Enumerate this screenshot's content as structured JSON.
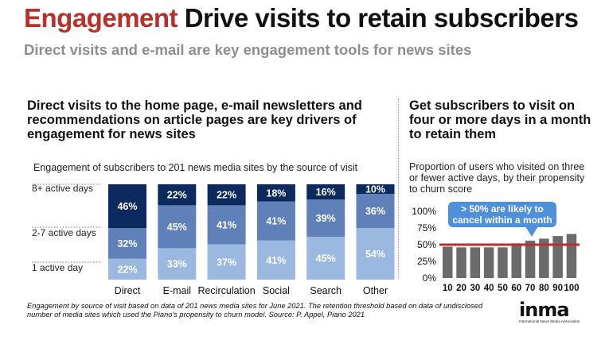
{
  "title": {
    "accent": "Engagement",
    "rest": " Drive visits to retain subscribers"
  },
  "subtitle": "Direct visits and e-mail are key engagement tools for news sites",
  "left_heading": "Direct visits to the home page, e-mail newsletters and recommendations on article pages are key drivers of engagement for news sites",
  "left_caption": "Engagement of subscribers to 201 news media sites by the source of visit",
  "right_heading": "Get subscribers to visit on four or more days in a month to retain them",
  "right_caption": "Proportion of users who visited on three or fewer active days, by their propensity to churn score",
  "footnote": "Engagement by source of visit based on data of 201 news media sites for June 2021. The retention threshold based on data of undisclosed number of media sites which used the Piano's propensity to churn model. Source: P. Appel, Piano 2021",
  "logo": {
    "wordmark": "inma",
    "tagline": "International News Media Association"
  },
  "colors": {
    "title_accent": "#b8302a",
    "dark_navy": "#0d2a5e",
    "mid_blue": "#5f80b8",
    "light_blue": "#9ab8e0",
    "grey_bar": "#6b6b6b",
    "threshold_red": "#b8302a",
    "callout_blue": "#4f90dc"
  },
  "chart_data": [
    {
      "type": "bar",
      "stacked": true,
      "units": "%",
      "categories": [
        "Direct",
        "E-mail",
        "Recirculation",
        "Social",
        "Search",
        "Other"
      ],
      "row_labels": [
        "8+ active days",
        "2-7 active days",
        "1 active day"
      ],
      "series": [
        {
          "name": "1 active day",
          "values": [
            22,
            33,
            37,
            41,
            45,
            54
          ]
        },
        {
          "name": "2-7 active days",
          "values": [
            32,
            45,
            41,
            41,
            39,
            36
          ]
        },
        {
          "name": "8+ active days",
          "values": [
            46,
            22,
            22,
            18,
            16,
            10
          ]
        }
      ]
    },
    {
      "type": "bar",
      "units": "%",
      "categories": [
        "10",
        "20",
        "30",
        "40",
        "50",
        "60",
        "70",
        "80",
        "90",
        "100"
      ],
      "values": [
        47,
        46,
        46,
        46,
        46,
        52,
        56,
        59,
        63,
        66
      ],
      "yticks": [
        "0%",
        "25%",
        "50%",
        "75%",
        "100%"
      ],
      "ylim": [
        0,
        100
      ],
      "threshold": 50,
      "annotation": "> 50% are likely to cancel within a month"
    }
  ]
}
